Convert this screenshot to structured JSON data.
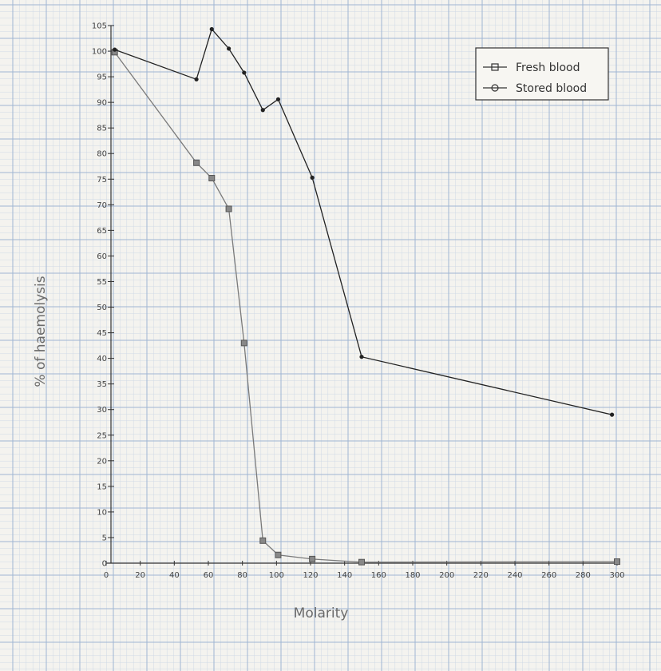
{
  "chart_data": {
    "type": "line",
    "title": "",
    "xlabel": "Molarity",
    "ylabel": "% of haemolysis",
    "xlim": [
      0,
      300
    ],
    "ylim": [
      0,
      105
    ],
    "xticks": [
      0,
      20,
      40,
      60,
      80,
      100,
      120,
      140,
      160,
      180,
      200,
      220,
      240,
      260,
      280,
      300
    ],
    "yticks": [
      0,
      5,
      10,
      15,
      20,
      25,
      30,
      35,
      40,
      45,
      50,
      55,
      60,
      65,
      70,
      75,
      80,
      85,
      90,
      95,
      100,
      105
    ],
    "grid": true,
    "legend_position": "top-right",
    "series": [
      {
        "name": "Fresh blood",
        "marker": "square",
        "color": "#7a7a7a",
        "points": [
          [
            5,
            99.8
          ],
          [
            53,
            78.2
          ],
          [
            62,
            75.2
          ],
          [
            72,
            69.2
          ],
          [
            81,
            43
          ],
          [
            92,
            4.4
          ],
          [
            101,
            1.6
          ],
          [
            121,
            0.8
          ],
          [
            150,
            0.2
          ],
          [
            300,
            0.3
          ]
        ]
      },
      {
        "name": "Stored blood",
        "marker": "circle",
        "color": "#222222",
        "points": [
          [
            5,
            100.3
          ],
          [
            53,
            94.5
          ],
          [
            62,
            104.3
          ],
          [
            72,
            100.5
          ],
          [
            81,
            95.8
          ],
          [
            92,
            88.5
          ],
          [
            101,
            90.6
          ],
          [
            121,
            75.3
          ],
          [
            150,
            40.3
          ],
          [
            297,
            29
          ]
        ]
      }
    ]
  }
}
